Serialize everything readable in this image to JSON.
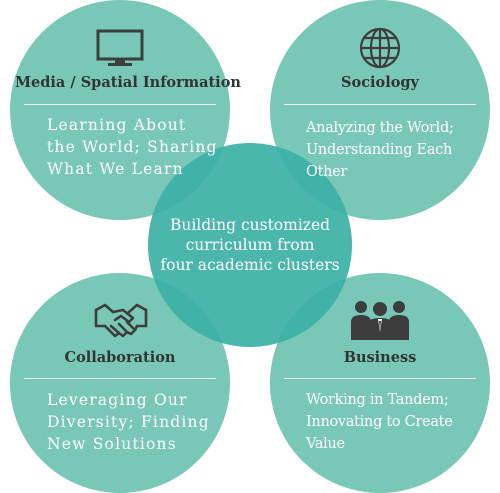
{
  "center": {
    "text": "Building customized\ncurriculum from\nfour academic clusters"
  },
  "clusters": [
    {
      "id": "media",
      "title": "Media / Spatial Information",
      "icon": "monitor-icon",
      "description": "Learning About\nthe World; Sharing\nWhat We Learn"
    },
    {
      "id": "sociology",
      "title": "Sociology",
      "icon": "globe-icon",
      "description": "Analyzing the World;\nUnderstanding Each\nOther"
    },
    {
      "id": "collaboration",
      "title": "Collaboration",
      "icon": "handshake-icon",
      "description": "Leveraging Our\nDiversity; Finding\nNew Solutions"
    },
    {
      "id": "business",
      "title": "Business",
      "icon": "business-people-icon",
      "description": "Working in Tandem;\nInnovating to Create\nValue"
    }
  ],
  "colors": {
    "circle": "#6fc3b2",
    "center": "#3cb0a5",
    "title_text": "#333333",
    "body_text": "#ffffff"
  }
}
